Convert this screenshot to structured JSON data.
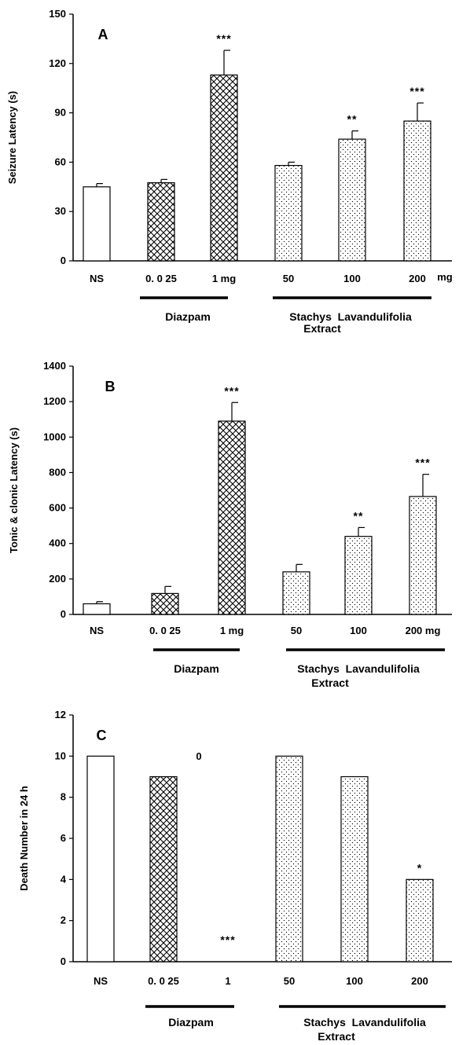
{
  "chart_data": [
    {
      "type": "bar",
      "panel_label": "A",
      "ylabel": "Seizure Latency (s)",
      "ylim": [
        0,
        150
      ],
      "yticks": [
        "0",
        "30",
        "60",
        "90",
        "120",
        "150"
      ],
      "categories": [
        "NS",
        "0. 0 25",
        "1 mg",
        "50",
        "100",
        "200"
      ],
      "unit_label": "mg",
      "values": [
        45,
        47.5,
        113,
        58,
        74,
        85
      ],
      "errors": [
        2,
        2,
        15,
        2,
        5,
        11
      ],
      "significance": [
        "",
        "",
        "***",
        "",
        "**",
        "***"
      ],
      "patterns": [
        "none",
        "hatch",
        "hatch",
        "dots",
        "dots",
        "dots"
      ],
      "groups": [
        {
          "label": "Diazpam",
          "second_line": ""
        },
        {
          "label": "Stachys  Lavandulifolia",
          "second_line": "Extract"
        }
      ]
    },
    {
      "type": "bar",
      "panel_label": "B",
      "ylabel": "Tonic & clonic  Latency (s)",
      "ylim": [
        0,
        1400
      ],
      "yticks": [
        "0",
        "200",
        "400",
        "600",
        "800",
        "1000",
        "1200",
        "1400"
      ],
      "categories": [
        "NS",
        "0. 0 25",
        "1 mg",
        "50",
        "100",
        "200 mg"
      ],
      "unit_label": "",
      "values": [
        60,
        118,
        1090,
        240,
        440,
        665
      ],
      "errors": [
        12,
        40,
        105,
        42,
        50,
        125
      ],
      "significance": [
        "",
        "",
        "***",
        "",
        "**",
        "***"
      ],
      "patterns": [
        "none",
        "hatch",
        "hatch",
        "dots",
        "dots",
        "dots"
      ],
      "groups": [
        {
          "label": "Diazpam",
          "second_line": ""
        },
        {
          "label": "Stachys  Lavandulifolia",
          "second_line": "Extract"
        }
      ]
    },
    {
      "type": "bar",
      "panel_label": "C",
      "ylabel": "Death Number in 24 h",
      "ylim": [
        0,
        12
      ],
      "yticks": [
        "0",
        "2",
        "4",
        "6",
        "8",
        "10",
        "12"
      ],
      "categories": [
        "NS",
        "0. 0 25",
        "1",
        "50",
        "100",
        "200"
      ],
      "unit_label": "",
      "values": [
        10,
        9,
        0,
        10,
        9,
        4
      ],
      "errors": [
        0,
        0,
        0,
        0,
        0,
        0
      ],
      "significance": [
        "",
        "",
        "***",
        "",
        "",
        "*"
      ],
      "patterns": [
        "none",
        "hatch",
        "hatch",
        "dots",
        "dots",
        "dots"
      ],
      "floating_label": "0",
      "groups": [
        {
          "label": "Diazpam",
          "second_line": ""
        },
        {
          "label": "Stachys  Lavandulifolia",
          "second_line": "Extract"
        }
      ]
    }
  ]
}
